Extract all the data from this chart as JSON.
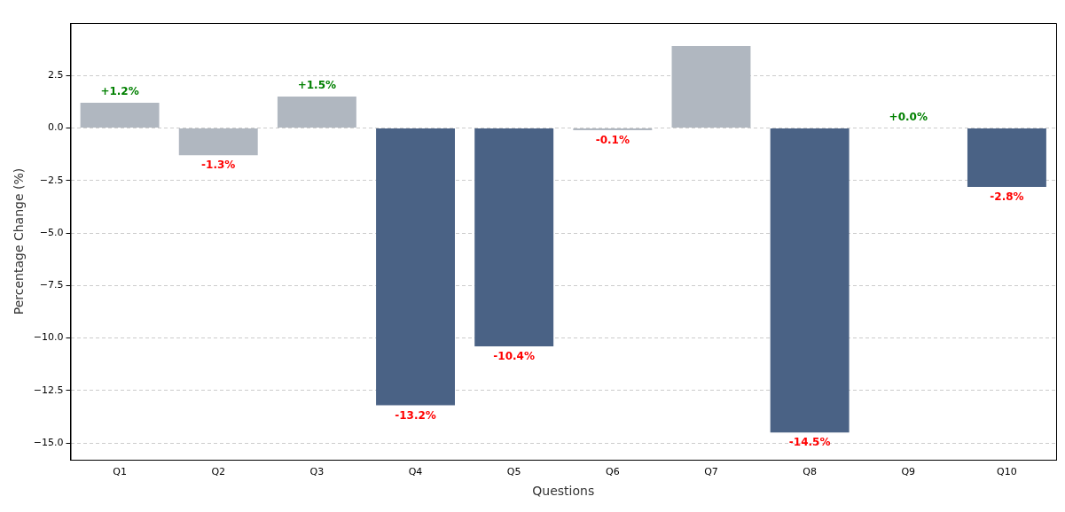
{
  "chart_data": {
    "type": "bar",
    "xlabel": "Questions",
    "ylabel": "Percentage Change (%)",
    "categories": [
      "Q1",
      "Q2",
      "Q3",
      "Q4",
      "Q5",
      "Q6",
      "Q7",
      "Q8",
      "Q9",
      "Q10"
    ],
    "values": [
      1.2,
      -1.3,
      1.5,
      -13.2,
      -10.4,
      -0.1,
      3.9,
      -14.5,
      0.0,
      -2.8
    ],
    "colors": [
      "#b0b7c0",
      "#b0b7c0",
      "#b0b7c0",
      "#4a6285",
      "#4a6285",
      "#b0b7c0",
      "#b0b7c0",
      "#4a6285",
      "#b0b7c0",
      "#4a6285"
    ],
    "value_labels": [
      "+1.2%",
      "-1.3%",
      "+1.5%",
      "-13.2%",
      "-10.4%",
      "-0.1%",
      null,
      "-14.5%",
      "+0.0%",
      "-2.8%"
    ],
    "ylim": [
      -15.8,
      5.0
    ],
    "yticks": [
      {
        "value": -15,
        "label": "−15.0"
      },
      {
        "value": -12.5,
        "label": "−12.5"
      },
      {
        "value": -10,
        "label": "−10.0"
      },
      {
        "value": -7.5,
        "label": "−7.5"
      },
      {
        "value": -5,
        "label": "−5.0"
      },
      {
        "value": -2.5,
        "label": "−2.5"
      },
      {
        "value": 0,
        "label": "0.0"
      },
      {
        "value": 2.5,
        "label": "2.5"
      }
    ],
    "grid": "y"
  }
}
